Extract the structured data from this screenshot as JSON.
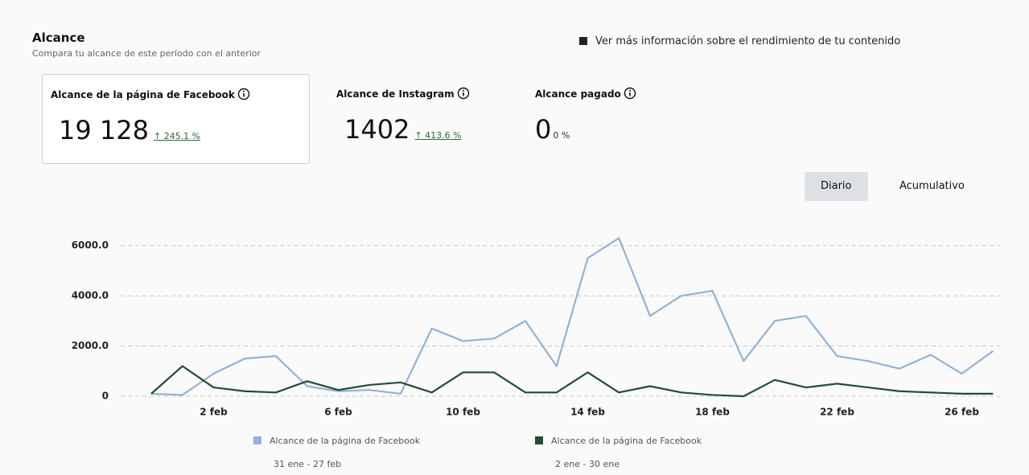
{
  "header": {
    "title": "Alcance",
    "subtitle": "Compara tu alcance de este período con el anterior",
    "link": "Ver más información sobre el rendimiento de tu contenido"
  },
  "metrics": [
    {
      "label": "Alcance de la página de Facebook",
      "value": "19 128",
      "change": "245.1 %"
    },
    {
      "label": "Alcance de Instagram",
      "value": "1402",
      "change": "413.6 %"
    },
    {
      "label": "Alcance pagado",
      "value": "0",
      "change": "0 %"
    }
  ],
  "toggle": [
    "Diario",
    "Acumulativo"
  ],
  "chart_data": {
    "type": "line",
    "categories": [
      null,
      null,
      "2 feb",
      null,
      null,
      null,
      "6 feb",
      null,
      null,
      null,
      "10 feb",
      null,
      null,
      null,
      "14 feb",
      null,
      null,
      null,
      "18 feb",
      null,
      null,
      null,
      "22 feb",
      null,
      null,
      null,
      "26 feb",
      null
    ],
    "series": [
      {
        "name": "Alcance de la página de Facebook",
        "period": "31 ene - 27 feb",
        "color": "#8fb3d9",
        "values": [
          100,
          50,
          900,
          1500,
          1600,
          400,
          200,
          250,
          100,
          2700,
          2200,
          2300,
          3000,
          1200,
          5500,
          6300,
          3200,
          4000,
          4200,
          1400,
          3000,
          3200,
          1600,
          1400,
          1100,
          1650,
          900,
          1800
        ]
      },
      {
        "name": "Alcance de la página de Facebook",
        "period": "2 ene - 30 ene",
        "color": "#1f4f2e",
        "values": [
          100,
          1200,
          350,
          200,
          150,
          600,
          250,
          450,
          550,
          150,
          950,
          950,
          150,
          150,
          950,
          150,
          400,
          150,
          50,
          0,
          650,
          350,
          500,
          350,
          200,
          150,
          100,
          100
        ]
      }
    ],
    "ylim": [
      0,
      6500
    ],
    "yticks": [
      0,
      {
        "value": 2000,
        "label": "2000.0"
      },
      {
        "value": 4000,
        "label": "4000.0"
      },
      {
        "value": 6000,
        "label": "6000.0"
      }
    ],
    "grid": true
  }
}
